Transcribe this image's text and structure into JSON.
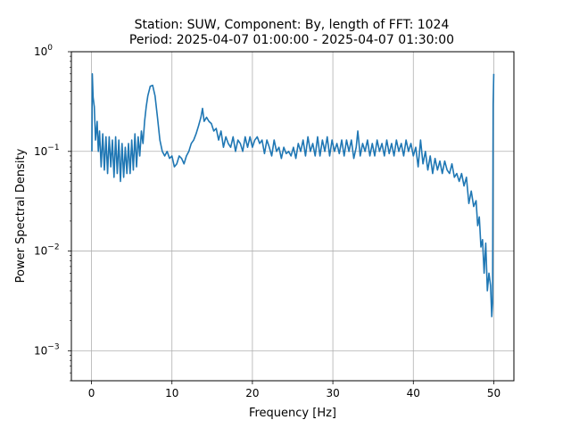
{
  "chart_data": {
    "type": "line",
    "title": "Station: SUW, Component: By, length of FFT: 1024",
    "subtitle": "Period: 2025-04-07 01:00:00 - 2025-04-07 01:30:00",
    "xlabel": "Frequency [Hz]",
    "ylabel": "Power Spectral Density",
    "xlim": [
      -2.5,
      52.5
    ],
    "ylim": [
      0.0005,
      1
    ],
    "yscale": "log",
    "grid": true,
    "x_ticks": [
      0,
      10,
      20,
      30,
      40,
      50
    ],
    "x_tick_labels": [
      "0",
      "10",
      "20",
      "30",
      "40",
      "50"
    ],
    "y_ticks": [
      0.001,
      0.01,
      0.1,
      1
    ],
    "y_tick_labels": [
      [
        "10",
        "−3"
      ],
      [
        "10",
        "−2"
      ],
      [
        "10",
        "−1"
      ],
      [
        "10",
        "0"
      ]
    ],
    "series": [
      {
        "color": "#1f77b4",
        "x": [
          0.05,
          0.1,
          0.2,
          0.35,
          0.5,
          0.7,
          0.85,
          1.0,
          1.2,
          1.4,
          1.6,
          1.8,
          2.0,
          2.2,
          2.4,
          2.6,
          2.8,
          3.0,
          3.2,
          3.4,
          3.6,
          3.8,
          4.0,
          4.2,
          4.4,
          4.6,
          4.8,
          5.0,
          5.2,
          5.4,
          5.6,
          5.8,
          6.0,
          6.2,
          6.4,
          6.6,
          6.8,
          7.0,
          7.3,
          7.6,
          7.9,
          8.2,
          8.5,
          8.8,
          9.1,
          9.4,
          9.7,
          10.0,
          10.3,
          10.6,
          10.9,
          11.2,
          11.5,
          11.8,
          12.1,
          12.4,
          12.7,
          13.0,
          13.3,
          13.6,
          13.8,
          14.0,
          14.3,
          14.6,
          14.9,
          15.2,
          15.5,
          15.8,
          16.1,
          16.4,
          16.7,
          17.0,
          17.3,
          17.6,
          17.9,
          18.2,
          18.5,
          18.8,
          19.1,
          19.4,
          19.7,
          20.0,
          20.3,
          20.6,
          20.9,
          21.2,
          21.5,
          21.8,
          22.1,
          22.4,
          22.7,
          23.0,
          23.3,
          23.6,
          23.9,
          24.2,
          24.5,
          24.8,
          25.1,
          25.4,
          25.7,
          26.0,
          26.3,
          26.6,
          26.9,
          27.2,
          27.5,
          27.8,
          28.1,
          28.4,
          28.7,
          29.0,
          29.3,
          29.6,
          29.9,
          30.2,
          30.5,
          30.8,
          31.1,
          31.4,
          31.7,
          32.0,
          32.3,
          32.6,
          32.9,
          33.1,
          33.4,
          33.7,
          34.0,
          34.3,
          34.6,
          34.9,
          35.2,
          35.5,
          35.8,
          36.1,
          36.4,
          36.7,
          37.0,
          37.3,
          37.6,
          37.9,
          38.2,
          38.5,
          38.8,
          39.1,
          39.4,
          39.7,
          40.0,
          40.3,
          40.6,
          40.9,
          41.2,
          41.5,
          41.8,
          42.1,
          42.4,
          42.7,
          43.0,
          43.3,
          43.6,
          43.9,
          44.2,
          44.5,
          44.8,
          45.1,
          45.4,
          45.7,
          46.0,
          46.3,
          46.6,
          46.9,
          47.2,
          47.5,
          47.8,
          48.0,
          48.2,
          48.4,
          48.6,
          48.8,
          49.0,
          49.2,
          49.4,
          49.6,
          49.75,
          49.85,
          49.92,
          50.0
        ],
        "y": [
          0.1,
          0.6,
          0.35,
          0.28,
          0.13,
          0.2,
          0.1,
          0.16,
          0.07,
          0.15,
          0.065,
          0.14,
          0.06,
          0.14,
          0.07,
          0.13,
          0.055,
          0.14,
          0.06,
          0.13,
          0.05,
          0.12,
          0.055,
          0.11,
          0.06,
          0.12,
          0.06,
          0.13,
          0.065,
          0.15,
          0.07,
          0.14,
          0.09,
          0.16,
          0.12,
          0.2,
          0.28,
          0.36,
          0.45,
          0.46,
          0.36,
          0.22,
          0.13,
          0.1,
          0.09,
          0.1,
          0.085,
          0.09,
          0.07,
          0.075,
          0.09,
          0.085,
          0.075,
          0.09,
          0.1,
          0.12,
          0.13,
          0.15,
          0.18,
          0.22,
          0.27,
          0.2,
          0.22,
          0.2,
          0.19,
          0.16,
          0.17,
          0.13,
          0.16,
          0.11,
          0.14,
          0.12,
          0.11,
          0.14,
          0.1,
          0.13,
          0.12,
          0.1,
          0.14,
          0.11,
          0.14,
          0.11,
          0.13,
          0.14,
          0.12,
          0.13,
          0.095,
          0.13,
          0.11,
          0.09,
          0.13,
          0.1,
          0.11,
          0.085,
          0.11,
          0.095,
          0.1,
          0.09,
          0.11,
          0.085,
          0.12,
          0.1,
          0.13,
          0.09,
          0.14,
          0.1,
          0.12,
          0.09,
          0.14,
          0.09,
          0.13,
          0.1,
          0.14,
          0.09,
          0.13,
          0.1,
          0.12,
          0.095,
          0.13,
          0.09,
          0.13,
          0.1,
          0.13,
          0.085,
          0.11,
          0.16,
          0.09,
          0.12,
          0.1,
          0.13,
          0.09,
          0.12,
          0.09,
          0.13,
          0.1,
          0.12,
          0.09,
          0.13,
          0.095,
          0.12,
          0.09,
          0.13,
          0.1,
          0.12,
          0.09,
          0.13,
          0.1,
          0.12,
          0.09,
          0.11,
          0.07,
          0.13,
          0.075,
          0.1,
          0.065,
          0.09,
          0.06,
          0.085,
          0.065,
          0.08,
          0.06,
          0.08,
          0.065,
          0.06,
          0.075,
          0.055,
          0.06,
          0.05,
          0.06,
          0.045,
          0.055,
          0.03,
          0.04,
          0.028,
          0.032,
          0.018,
          0.022,
          0.011,
          0.013,
          0.006,
          0.012,
          0.004,
          0.006,
          0.0045,
          0.0022,
          0.003,
          0.3,
          0.6
        ]
      }
    ]
  }
}
